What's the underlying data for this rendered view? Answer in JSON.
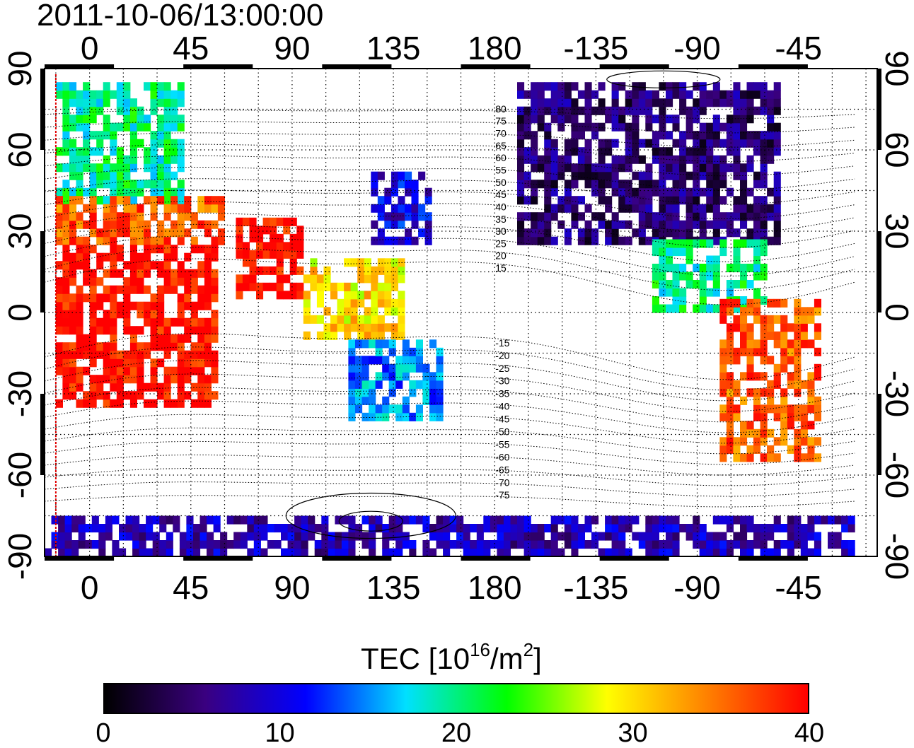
{
  "timestamp": "2011-10-06/13:00:00",
  "map": {
    "projection": "equirectangular",
    "lon_range": [
      -20,
      350
    ],
    "lat_range": [
      -90,
      90
    ],
    "longitude_ticks_top": [
      "0",
      "45",
      "90",
      "135",
      "180",
      "-135",
      "-90",
      "-45"
    ],
    "longitude_ticks_bottom": [
      "0",
      "45",
      "90",
      "135",
      "180",
      "-135",
      "-90",
      "-45"
    ],
    "latitude_ticks_left": [
      "90",
      "60",
      "30",
      "0",
      "-30",
      "-60",
      "-90"
    ],
    "latitude_ticks_right": [
      "90",
      "60",
      "30",
      "0",
      "-30",
      "-60",
      "-90"
    ],
    "grid": "dotted, every 15 degrees",
    "red_vertical_line_lon": -15,
    "contour_labels": [
      "80",
      "75",
      "70",
      "65",
      "60",
      "55",
      "50",
      "45",
      "40",
      "35",
      "30",
      "25",
      "20",
      "15",
      "-15",
      "-20",
      "-25",
      "-30",
      "-35",
      "-40",
      "-45",
      "-50",
      "-55",
      "-60",
      "-65",
      "-70",
      "-75"
    ]
  },
  "tec_regions": [
    {
      "name": "europe-north",
      "lon": [
        -15,
        40
      ],
      "lat": [
        40,
        85
      ],
      "tec": 20
    },
    {
      "name": "europe-south",
      "lon": [
        -15,
        60
      ],
      "lat": [
        25,
        42
      ],
      "tec": 36
    },
    {
      "name": "africa",
      "lon": [
        -15,
        55
      ],
      "lat": [
        -35,
        25
      ],
      "tec": 40
    },
    {
      "name": "india",
      "lon": [
        65,
        95
      ],
      "lat": [
        5,
        35
      ],
      "tec": 40
    },
    {
      "name": "southeast-asia",
      "lon": [
        95,
        140
      ],
      "lat": [
        -10,
        20
      ],
      "tec": 30
    },
    {
      "name": "japan",
      "lon": [
        125,
        150
      ],
      "lat": [
        25,
        50
      ],
      "tec": 10
    },
    {
      "name": "australia",
      "lon": [
        115,
        155
      ],
      "lat": [
        -40,
        -12
      ],
      "tec": 15
    },
    {
      "name": "north-america",
      "lon": [
        -170,
        -55
      ],
      "lat": [
        25,
        85
      ],
      "tec": 5
    },
    {
      "name": "central-america",
      "lon": [
        -110,
        -60
      ],
      "lat": [
        0,
        25
      ],
      "tec": 20
    },
    {
      "name": "south-america",
      "lon": [
        -80,
        -35
      ],
      "lat": [
        -55,
        5
      ],
      "tec": 36
    },
    {
      "name": "antarctica",
      "lon": [
        -20,
        340
      ],
      "lat": [
        -90,
        -75
      ],
      "tec": 8
    }
  ],
  "colorbar": {
    "title": "TEC  [10",
    "title_exp": "16",
    "title_unit": "/m",
    "title_unit_exp": "2",
    "title_close": "]",
    "min": 0,
    "max": 40,
    "ticks": [
      "0",
      "10",
      "20",
      "30",
      "40"
    ],
    "colormap": [
      "#000000",
      "#3a0080",
      "#0000ff",
      "#00e0ff",
      "#00ff00",
      "#ffff00",
      "#ff8000",
      "#ff0000"
    ]
  }
}
